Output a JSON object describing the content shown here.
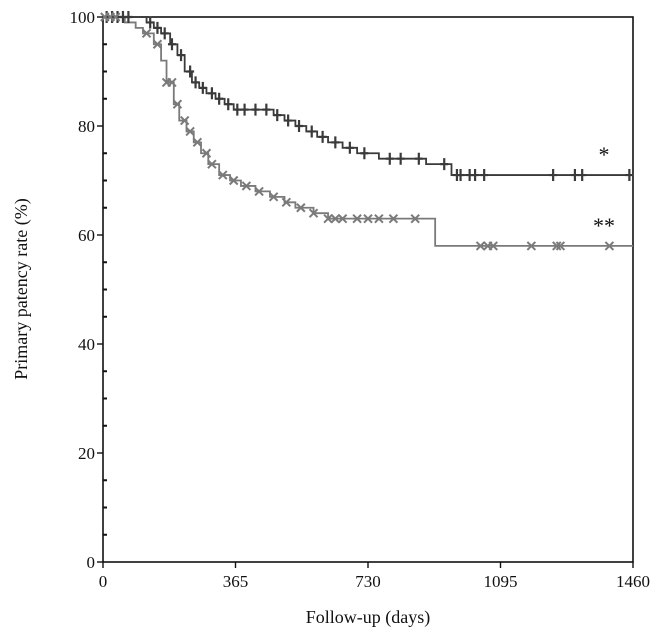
{
  "chart_data": {
    "type": "line",
    "step": true,
    "title": "",
    "xlabel": "Follow-up (days)",
    "ylabel": "Primary patency rate (%)",
    "xlim": [
      0,
      1460
    ],
    "ylim": [
      0,
      100
    ],
    "xticks": [
      0,
      365,
      730,
      1095,
      1460
    ],
    "yticks": [
      0,
      20,
      40,
      60,
      80,
      100
    ],
    "grid": false,
    "colors": {
      "series_a": "#3a3a3a",
      "series_b": "#7a7a7a"
    },
    "series": [
      {
        "marker": "plus",
        "annotation": "*",
        "points": [
          [
            0,
            100
          ],
          [
            90,
            100
          ],
          [
            120,
            99
          ],
          [
            140,
            98
          ],
          [
            160,
            97
          ],
          [
            185,
            95
          ],
          [
            205,
            93
          ],
          [
            225,
            90
          ],
          [
            245,
            88
          ],
          [
            265,
            87
          ],
          [
            285,
            86
          ],
          [
            310,
            85
          ],
          [
            335,
            84
          ],
          [
            360,
            83
          ],
          [
            400,
            83
          ],
          [
            440,
            83
          ],
          [
            470,
            82
          ],
          [
            500,
            81
          ],
          [
            530,
            80
          ],
          [
            560,
            79
          ],
          [
            590,
            78
          ],
          [
            620,
            77
          ],
          [
            660,
            76
          ],
          [
            700,
            75
          ],
          [
            760,
            74
          ],
          [
            850,
            74
          ],
          [
            890,
            73
          ],
          [
            960,
            71
          ],
          [
            1000,
            71
          ],
          [
            1460,
            71
          ]
        ],
        "censored_x": [
          10,
          25,
          40,
          55,
          70,
          130,
          150,
          170,
          190,
          215,
          240,
          255,
          275,
          300,
          320,
          345,
          370,
          390,
          420,
          450,
          480,
          510,
          540,
          575,
          605,
          640,
          680,
          720,
          790,
          820,
          870,
          940,
          975,
          985,
          1010,
          1025,
          1050,
          1240,
          1300,
          1320,
          1450
        ]
      },
      {
        "marker": "cross",
        "annotation": "**",
        "points": [
          [
            0,
            100
          ],
          [
            60,
            99
          ],
          [
            90,
            98
          ],
          [
            110,
            97
          ],
          [
            140,
            95
          ],
          [
            160,
            92
          ],
          [
            175,
            88
          ],
          [
            195,
            84
          ],
          [
            210,
            81
          ],
          [
            230,
            79
          ],
          [
            250,
            77
          ],
          [
            270,
            75
          ],
          [
            290,
            73
          ],
          [
            320,
            71
          ],
          [
            350,
            70
          ],
          [
            380,
            69
          ],
          [
            420,
            68
          ],
          [
            460,
            67
          ],
          [
            500,
            66
          ],
          [
            530,
            65
          ],
          [
            580,
            64
          ],
          [
            620,
            63
          ],
          [
            680,
            63
          ],
          [
            890,
            63
          ],
          [
            915,
            58
          ],
          [
            1460,
            58
          ]
        ],
        "censored_x": [
          5,
          20,
          35,
          120,
          150,
          175,
          190,
          205,
          225,
          240,
          260,
          285,
          300,
          330,
          360,
          395,
          430,
          470,
          505,
          545,
          580,
          620,
          640,
          660,
          700,
          730,
          760,
          800,
          860,
          1040,
          1060,
          1075,
          1180,
          1250,
          1260,
          1395
        ]
      }
    ]
  }
}
